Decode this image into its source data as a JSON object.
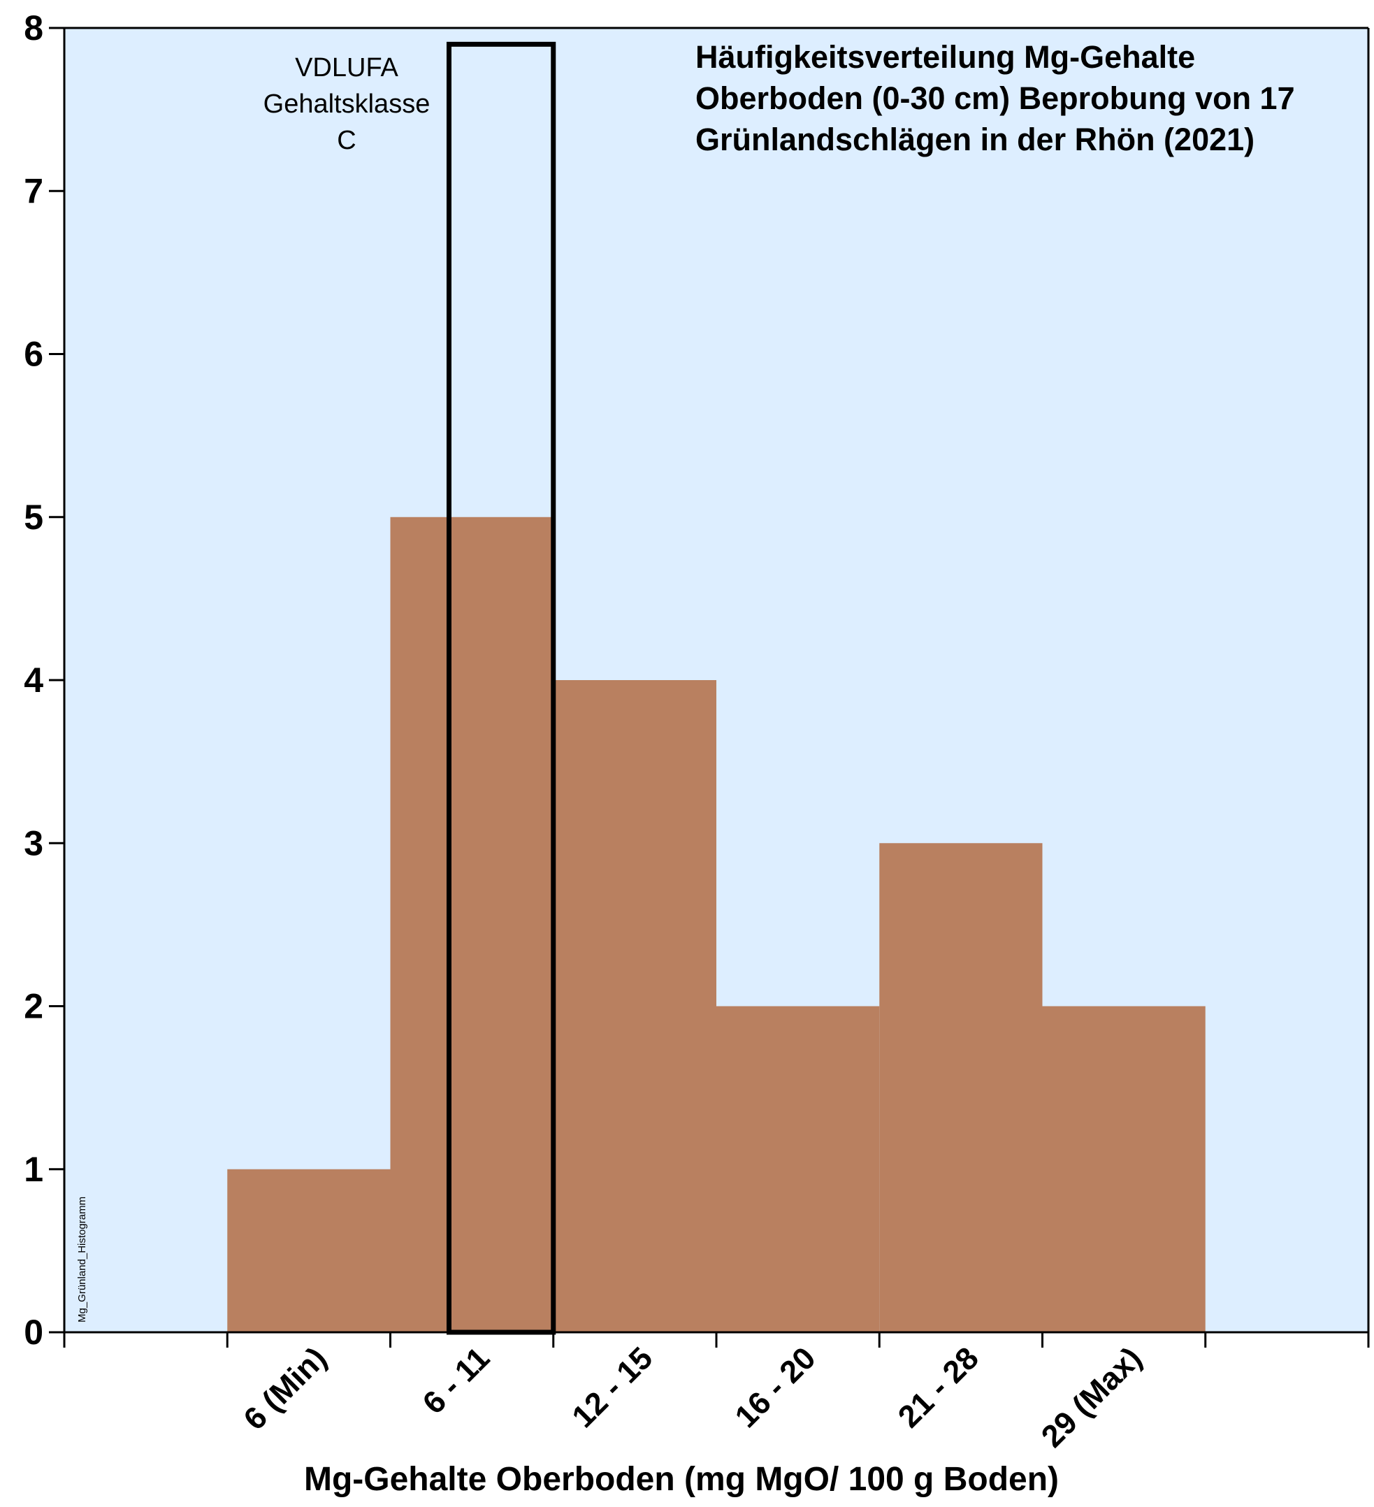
{
  "chart_data": {
    "type": "bar",
    "title_lines": [
      "Häufigkeitsverteilung Mg-Gehalte",
      "Oberboden (0-30 cm) Beprobung von 17",
      "Grünlandschlägen in der Rhön (2021)"
    ],
    "xlabel": "Mg-Gehalte Oberboden (mg MgO/ 100 g Boden)",
    "ylabel": "",
    "categories": [
      "6 (Min)",
      "6 - 11",
      "12 - 15",
      "16 - 20",
      "21 - 28",
      "29 (Max)"
    ],
    "values": [
      1,
      5,
      4,
      2,
      3,
      2
    ],
    "ylim": [
      0,
      8
    ],
    "yticks": [
      "0",
      "1",
      "2",
      "3",
      "4",
      "5",
      "6",
      "7",
      "8"
    ],
    "grid": false,
    "legend": "none",
    "annotation": {
      "lines": [
        "VDLUFA",
        "Gehaltsklasse",
        "C"
      ],
      "highlighted_category": "6 - 11"
    },
    "watermark": "Mg_Grünland_Histogramm",
    "colors": {
      "bar": "#b98060",
      "plot_background": "#ddeeff",
      "axis": "#000000",
      "highlight_box": "#000000"
    }
  }
}
